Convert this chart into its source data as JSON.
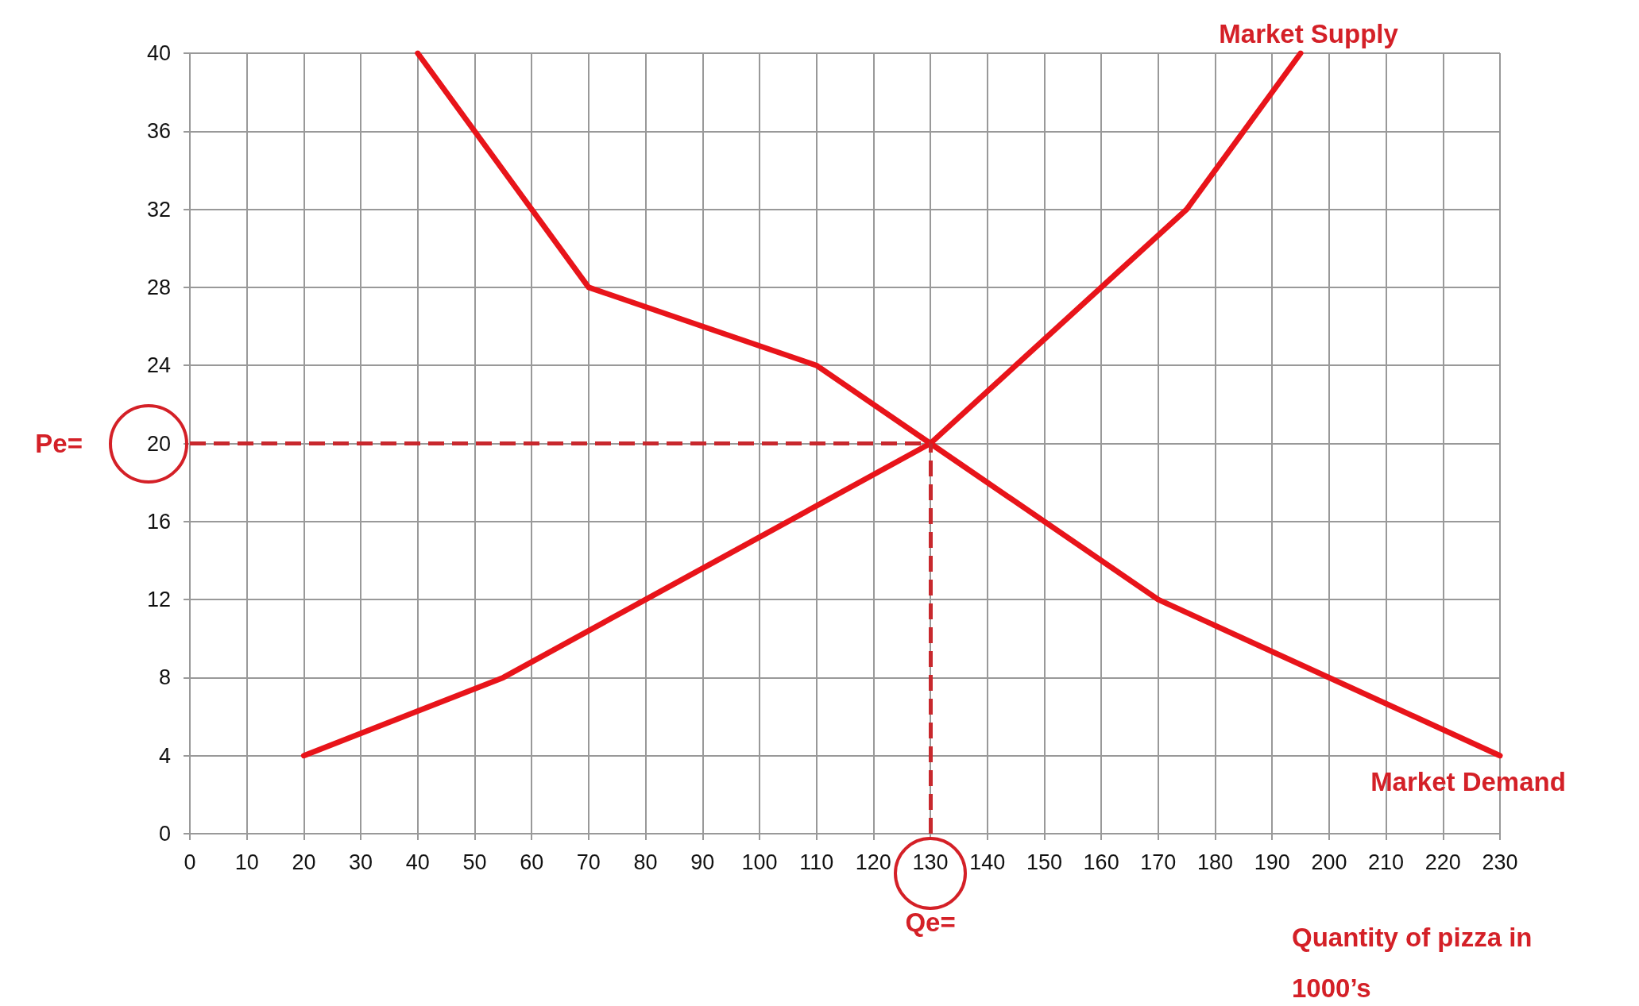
{
  "chart_data": {
    "type": "line",
    "xlabel": "Quantity of pizza in 1000’s",
    "xlim": [
      0,
      230
    ],
    "xticks": [
      0,
      10,
      20,
      30,
      40,
      50,
      60,
      70,
      80,
      90,
      100,
      110,
      120,
      130,
      140,
      150,
      160,
      170,
      180,
      190,
      200,
      210,
      220,
      230
    ],
    "ylim": [
      0,
      40
    ],
    "yticks": [
      0,
      4,
      8,
      12,
      16,
      20,
      24,
      28,
      32,
      36,
      40
    ],
    "grid": true,
    "legend": false,
    "marker": "none",
    "line_style": "solid",
    "series": [
      {
        "name": "Market Supply",
        "color": "#e8141a",
        "x": [
          20,
          55,
          80,
          130,
          145,
          160,
          175,
          195
        ],
        "values": [
          4,
          8,
          12,
          20,
          24,
          28,
          32,
          40
        ]
      },
      {
        "name": "Market Demand",
        "color": "#e8141a",
        "x": [
          40,
          70,
          110,
          130,
          170,
          230
        ],
        "values": [
          40,
          28,
          24,
          20,
          12,
          4
        ]
      }
    ],
    "ref_lines": [
      {
        "axis": "y",
        "value": 20,
        "label": "Pe=",
        "color": "#c8282d",
        "line_style": "dashed"
      },
      {
        "axis": "x",
        "value": 130,
        "label": "Qe=",
        "color": "#c8282d",
        "line_style": "dashed"
      }
    ]
  }
}
